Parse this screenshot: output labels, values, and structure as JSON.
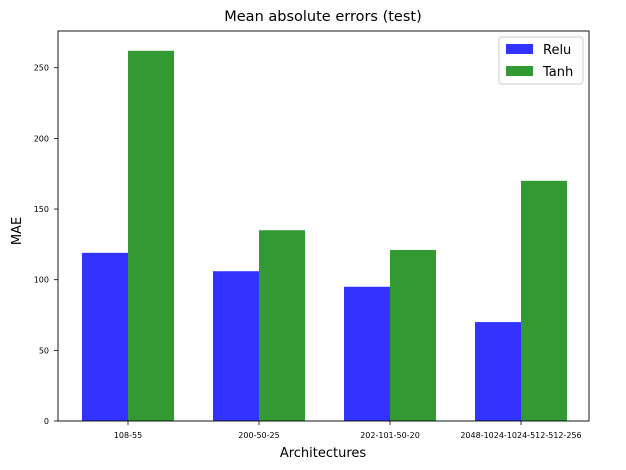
{
  "chart_data": {
    "type": "bar",
    "title": "Mean absolute errors (test)",
    "xlabel": "Architectures",
    "ylabel": "MAE",
    "categories": [
      "108-55",
      "200-50-25",
      "202-101-50-20",
      "2048-1024-1024-512-512-256"
    ],
    "series": [
      {
        "name": "Relu",
        "color": "#3333ff",
        "values": [
          119,
          106,
          95,
          70
        ]
      },
      {
        "name": "Tanh",
        "color": "#339933",
        "values": [
          262,
          135,
          121,
          170
        ]
      }
    ],
    "ylim": [
      0,
      276
    ],
    "yticks": [
      0,
      50,
      100,
      150,
      200,
      250
    ],
    "grid": false,
    "legend": "top-right"
  }
}
